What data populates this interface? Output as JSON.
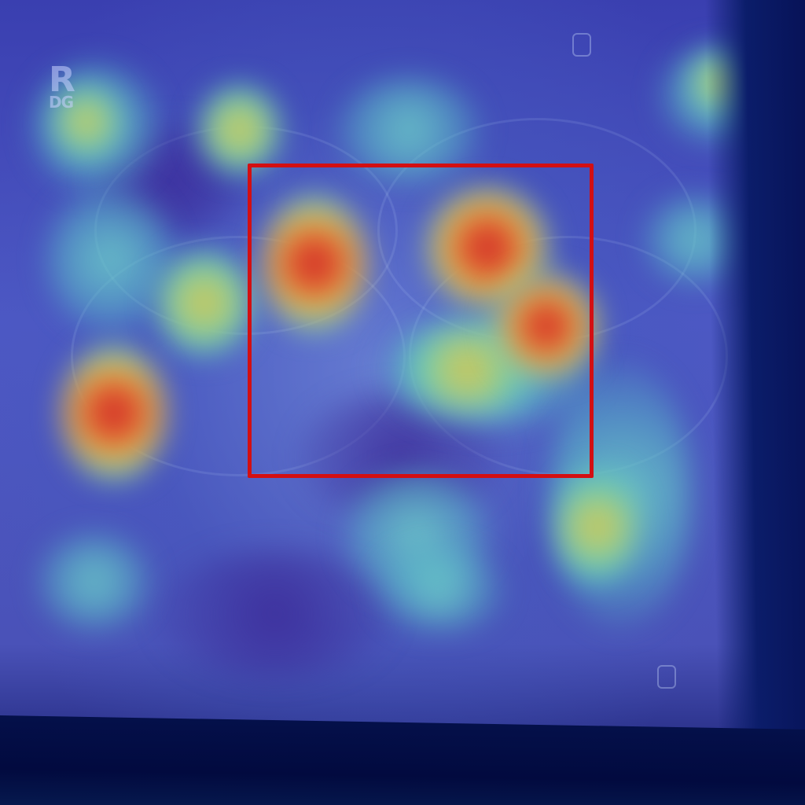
{
  "image": {
    "marker_letter": "R",
    "marker_sub": "DG",
    "overlay_colors": {
      "hot": "#c21a2a",
      "warm": "#e0b84a",
      "cool": "#5cc4c0",
      "base": "#4a52b8",
      "box_outline": "#d30f12"
    }
  }
}
